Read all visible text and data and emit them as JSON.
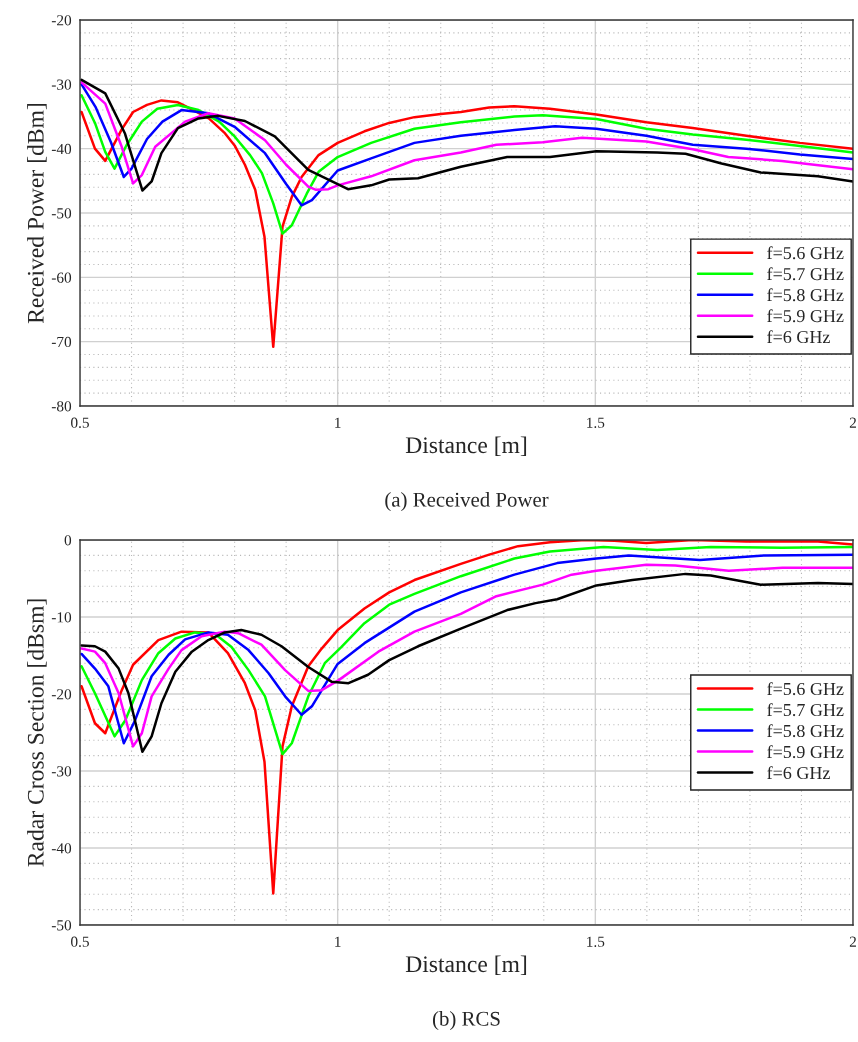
{
  "chart_data": [
    {
      "type": "line",
      "xlabel": "Distance [m]",
      "ylabel": "Received Power [dBm]",
      "annotations": [
        "(a) Received Power"
      ],
      "xlim": [
        0.5,
        2
      ],
      "xticks": [
        0.5,
        1,
        1.5,
        2
      ],
      "ylim": [
        -80,
        -20
      ],
      "yticks": [
        -80,
        -70,
        -60,
        -50,
        -40,
        -30,
        -20
      ],
      "grid": true,
      "legend": "bottom right",
      "marker": "none",
      "line_style": "solid",
      "series": [
        {
          "name": "f=5.6 GHz",
          "color": "#ff0000",
          "x": [
            0.503,
            0.529,
            0.549,
            0.581,
            0.603,
            0.63,
            0.658,
            0.69,
            0.72,
            0.75,
            0.78,
            0.8,
            0.82,
            0.84,
            0.858,
            0.875,
            0.893,
            0.911,
            0.93,
            0.963,
            1.0,
            1.052,
            1.1,
            1.149,
            1.2,
            1.239,
            1.294,
            1.343,
            1.412,
            1.502,
            1.599,
            1.689,
            1.793,
            1.897,
            2.0
          ],
          "values": [
            -34.3,
            -40.0,
            -41.9,
            -37.0,
            -34.3,
            -33.2,
            -32.5,
            -32.8,
            -34.0,
            -35.3,
            -37.5,
            -39.5,
            -42.5,
            -46.4,
            -53.7,
            -70.8,
            -52.1,
            -47.5,
            -44.4,
            -41.0,
            -39.1,
            -37.3,
            -36.0,
            -35.1,
            -34.6,
            -34.3,
            -33.6,
            -33.4,
            -33.8,
            -34.7,
            -35.9,
            -36.8,
            -38.0,
            -39.1,
            -40.0
          ]
        },
        {
          "name": "f=5.7 GHz",
          "color": "#00ff00",
          "x": [
            0.503,
            0.529,
            0.549,
            0.567,
            0.59,
            0.62,
            0.65,
            0.69,
            0.73,
            0.77,
            0.8,
            0.83,
            0.853,
            0.875,
            0.893,
            0.911,
            0.94,
            0.963,
            1.0,
            1.065,
            1.149,
            1.239,
            1.343,
            1.398,
            1.502,
            1.599,
            1.689,
            1.793,
            1.897,
            2.0
          ],
          "values": [
            -31.7,
            -36.0,
            -40.5,
            -43.1,
            -39.5,
            -35.8,
            -33.8,
            -33.2,
            -34.0,
            -35.8,
            -38.1,
            -41.0,
            -43.8,
            -48.5,
            -53.2,
            -51.9,
            -47.0,
            -43.6,
            -41.3,
            -39.1,
            -36.9,
            -35.9,
            -35.0,
            -34.8,
            -35.4,
            -36.9,
            -37.8,
            -38.6,
            -39.6,
            -40.6
          ]
        },
        {
          "name": "f=5.8 GHz",
          "color": "#0000ff",
          "x": [
            0.503,
            0.53,
            0.56,
            0.585,
            0.6,
            0.63,
            0.66,
            0.697,
            0.749,
            0.8,
            0.859,
            0.9,
            0.93,
            0.95,
            1.0,
            1.065,
            1.149,
            1.239,
            1.343,
            1.422,
            1.502,
            1.599,
            1.689,
            1.793,
            1.897,
            2.0
          ],
          "values": [
            -30.0,
            -33.5,
            -39.0,
            -44.4,
            -43.1,
            -38.5,
            -35.8,
            -34.0,
            -34.5,
            -36.6,
            -40.7,
            -45.5,
            -48.8,
            -48.0,
            -43.4,
            -41.5,
            -39.1,
            -38.0,
            -37.1,
            -36.5,
            -36.9,
            -38.0,
            -39.4,
            -40.0,
            -40.9,
            -41.6
          ]
        },
        {
          "name": "f=5.9 GHz",
          "color": "#ff00ff",
          "x": [
            0.503,
            0.549,
            0.58,
            0.603,
            0.62,
            0.646,
            0.704,
            0.749,
            0.8,
            0.859,
            0.9,
            0.943,
            0.958,
            0.982,
            1.0,
            1.065,
            1.149,
            1.239,
            1.308,
            1.398,
            1.474,
            1.599,
            1.689,
            1.758,
            1.862,
            2.0
          ],
          "values": [
            -29.7,
            -33.0,
            -39.5,
            -45.4,
            -44.1,
            -39.7,
            -35.8,
            -34.5,
            -35.3,
            -38.7,
            -42.5,
            -45.9,
            -46.4,
            -46.3,
            -45.7,
            -44.3,
            -41.8,
            -40.6,
            -39.4,
            -39.0,
            -38.3,
            -38.9,
            -40.1,
            -41.3,
            -41.9,
            -43.2
          ]
        },
        {
          "name": "f=6 GHz",
          "color": "#000000",
          "x": [
            0.503,
            0.549,
            0.587,
            0.621,
            0.639,
            0.658,
            0.69,
            0.73,
            0.768,
            0.82,
            0.878,
            0.943,
            1.02,
            1.065,
            1.1,
            1.156,
            1.239,
            1.329,
            1.412,
            1.502,
            1.62,
            1.675,
            1.745,
            1.821,
            1.932,
            2.0
          ],
          "values": [
            -29.3,
            -31.4,
            -37.6,
            -46.5,
            -45.1,
            -40.7,
            -36.8,
            -35.3,
            -34.9,
            -35.7,
            -38.1,
            -43.3,
            -46.3,
            -45.7,
            -44.8,
            -44.6,
            -42.8,
            -41.3,
            -41.3,
            -40.4,
            -40.6,
            -40.8,
            -42.3,
            -43.7,
            -44.3,
            -45.1
          ]
        }
      ]
    },
    {
      "type": "line",
      "xlabel": "Distance [m]",
      "ylabel": "Radar Cross Section [dBsm]",
      "annotations": [
        "(b) RCS"
      ],
      "xlim": [
        0.5,
        2
      ],
      "xticks": [
        0.5,
        1,
        1.5,
        2
      ],
      "ylim": [
        -50,
        0
      ],
      "yticks": [
        -50,
        -40,
        -30,
        -20,
        -10,
        0
      ],
      "grid": true,
      "legend": "right",
      "marker": "none",
      "line_style": "solid",
      "series": [
        {
          "name": "f=5.6 GHz",
          "color": "#ff0000",
          "x": [
            0.503,
            0.529,
            0.549,
            0.581,
            0.603,
            0.652,
            0.697,
            0.749,
            0.787,
            0.82,
            0.84,
            0.858,
            0.875,
            0.893,
            0.911,
            0.943,
            0.969,
            1.0,
            1.052,
            1.1,
            1.149,
            1.239,
            1.294,
            1.35,
            1.412,
            1.481,
            1.537,
            1.599,
            1.689,
            1.793,
            1.932,
            2.0
          ],
          "values": [
            -19.0,
            -23.8,
            -25.1,
            -19.5,
            -16.2,
            -13.0,
            -11.9,
            -12.0,
            -14.7,
            -18.6,
            -22.1,
            -28.8,
            -45.9,
            -26.8,
            -21.6,
            -16.4,
            -14.1,
            -11.7,
            -8.9,
            -6.8,
            -5.2,
            -3.1,
            -1.9,
            -0.8,
            -0.3,
            0.0,
            -0.1,
            -0.4,
            0.0,
            -0.2,
            -0.2,
            -0.6
          ]
        },
        {
          "name": "f=5.7 GHz",
          "color": "#00ff00",
          "x": [
            0.503,
            0.529,
            0.567,
            0.588,
            0.62,
            0.652,
            0.685,
            0.723,
            0.762,
            0.794,
            0.827,
            0.859,
            0.893,
            0.911,
            0.943,
            0.975,
            1.007,
            1.052,
            1.1,
            1.149,
            1.239,
            1.343,
            1.412,
            1.516,
            1.62,
            1.724,
            1.862,
            2.0
          ],
          "values": [
            -16.4,
            -19.9,
            -25.5,
            -23.4,
            -18.2,
            -14.7,
            -12.8,
            -12.0,
            -12.2,
            -13.9,
            -16.9,
            -20.3,
            -27.8,
            -26.4,
            -20.3,
            -16.0,
            -13.9,
            -10.8,
            -8.4,
            -7.0,
            -4.7,
            -2.4,
            -1.5,
            -0.9,
            -1.3,
            -0.9,
            -1.0,
            -0.9
          ]
        },
        {
          "name": "f=5.8 GHz",
          "color": "#0000ff",
          "x": [
            0.503,
            0.529,
            0.555,
            0.585,
            0.607,
            0.639,
            0.672,
            0.704,
            0.749,
            0.787,
            0.827,
            0.866,
            0.898,
            0.93,
            0.95,
            1.0,
            1.052,
            1.149,
            1.239,
            1.343,
            1.426,
            1.502,
            1.565,
            1.703,
            1.828,
            2.0
          ],
          "values": [
            -14.8,
            -16.7,
            -19.0,
            -26.4,
            -23.4,
            -17.7,
            -14.9,
            -12.9,
            -12.0,
            -12.3,
            -14.3,
            -17.3,
            -20.3,
            -22.7,
            -21.6,
            -16.1,
            -13.4,
            -9.3,
            -6.8,
            -4.5,
            -3.0,
            -2.4,
            -2.0,
            -2.6,
            -2.0,
            -1.9
          ]
        },
        {
          "name": "f=5.9 GHz",
          "color": "#ff00ff",
          "x": [
            0.503,
            0.529,
            0.549,
            0.575,
            0.603,
            0.62,
            0.639,
            0.672,
            0.697,
            0.736,
            0.781,
            0.807,
            0.852,
            0.898,
            0.943,
            0.969,
            1.002,
            1.079,
            1.149,
            1.239,
            1.308,
            1.398,
            1.454,
            1.502,
            1.599,
            1.655,
            1.759,
            1.863,
            2.0
          ],
          "values": [
            -14.1,
            -14.5,
            -16.0,
            -19.9,
            -26.8,
            -25.1,
            -20.3,
            -16.7,
            -14.3,
            -12.5,
            -11.9,
            -12.1,
            -13.6,
            -16.9,
            -19.6,
            -19.5,
            -18.2,
            -14.5,
            -11.9,
            -9.6,
            -7.3,
            -5.8,
            -4.5,
            -4.0,
            -3.2,
            -3.3,
            -4.0,
            -3.6,
            -3.6
          ]
        },
        {
          "name": "f=6 GHz",
          "color": "#000000",
          "x": [
            0.503,
            0.529,
            0.549,
            0.575,
            0.594,
            0.621,
            0.639,
            0.658,
            0.685,
            0.717,
            0.749,
            0.781,
            0.813,
            0.852,
            0.891,
            0.943,
            0.988,
            1.021,
            1.059,
            1.1,
            1.156,
            1.239,
            1.329,
            1.384,
            1.426,
            1.502,
            1.572,
            1.675,
            1.724,
            1.821,
            1.932,
            2.0
          ],
          "values": [
            -13.7,
            -13.8,
            -14.5,
            -16.7,
            -19.9,
            -27.5,
            -25.5,
            -21.2,
            -17.1,
            -14.5,
            -13.0,
            -12.0,
            -11.7,
            -12.3,
            -13.8,
            -16.5,
            -18.4,
            -18.6,
            -17.5,
            -15.6,
            -13.8,
            -11.5,
            -9.1,
            -8.2,
            -7.7,
            -5.9,
            -5.2,
            -4.4,
            -4.6,
            -5.8,
            -5.6,
            -5.7
          ]
        }
      ]
    }
  ]
}
